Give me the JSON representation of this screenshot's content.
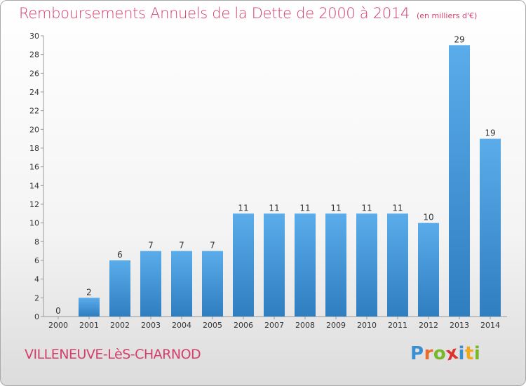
{
  "title": "Remboursements Annuels de la Dette de 2000 à 2014",
  "subtitle": "(en milliers d'€)",
  "town": "VILLENEUVE-LèS-CHARNOD",
  "brand": {
    "letters": [
      "P",
      "r",
      "o",
      "x",
      "i",
      "t",
      "i"
    ],
    "colors": [
      "#3a8fd1",
      "#e86b2b",
      "#76b82a",
      "#e0312f",
      "#3a8fd1",
      "#f2a81d",
      "#76b82a"
    ]
  },
  "colors": {
    "accent": "#d33f6a",
    "bar_light": "#5aacea",
    "bar_dark": "#2f7ec0"
  },
  "chart_data": {
    "type": "bar",
    "title": "Remboursements Annuels de la Dette de 2000 à 2014",
    "subtitle": "(en milliers d'€)",
    "categories": [
      "2000",
      "2001",
      "2002",
      "2003",
      "2004",
      "2005",
      "2006",
      "2007",
      "2008",
      "2009",
      "2010",
      "2011",
      "2012",
      "2013",
      "2014"
    ],
    "values": [
      0,
      2,
      6,
      7,
      7,
      7,
      11,
      11,
      11,
      11,
      11,
      11,
      10,
      29,
      19
    ],
    "ylim": [
      0,
      30
    ],
    "yticks": [
      0,
      2,
      4,
      6,
      8,
      10,
      12,
      14,
      16,
      18,
      20,
      22,
      24,
      26,
      28,
      30
    ],
    "grid": false,
    "data_labels": true
  }
}
